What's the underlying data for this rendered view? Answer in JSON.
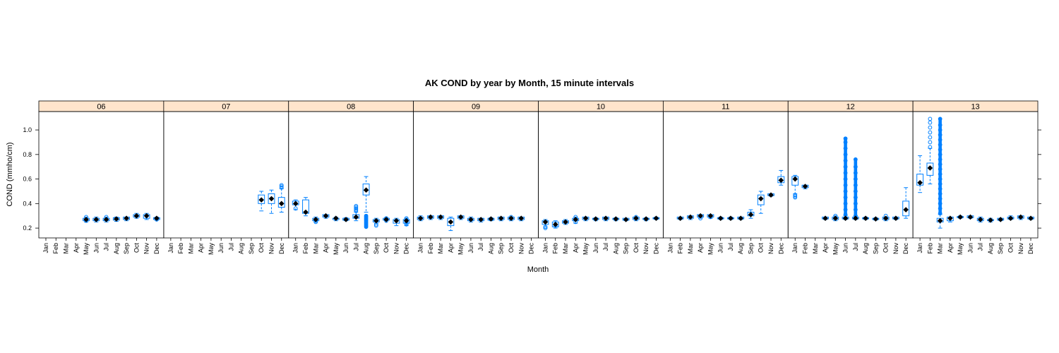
{
  "chart_data": {
    "type": "box",
    "title": "AK COND by year by Month, 15 minute intervals",
    "xlabel": "Month",
    "ylabel": "COND (mmho/cm)",
    "ylim": [
      0.12,
      1.15
    ],
    "yticks": [
      0.2,
      0.4,
      0.6,
      0.8,
      1.0
    ],
    "ytick_labels": [
      "0.2",
      "0.4",
      "0.6",
      "0.8",
      "1.0"
    ],
    "months": [
      "Jan",
      "Feb",
      "Mar",
      "Apr",
      "May",
      "Jun",
      "Jul",
      "Aug",
      "Sep",
      "Oct",
      "Nov",
      "Dec"
    ],
    "colors": {
      "strip": "#ffe5cc",
      "box": "#0080ff",
      "median": "#000000",
      "frame": "#000000"
    },
    "panels": [
      {
        "year": "06",
        "boxes": [
          {
            "m": 5,
            "med": 0.27,
            "q1": 0.26,
            "q3": 0.28,
            "lo": 0.25,
            "hi": 0.29,
            "out": [
              0.26,
              0.29
            ]
          },
          {
            "m": 6,
            "med": 0.27,
            "q1": 0.26,
            "q3": 0.28,
            "lo": 0.25,
            "hi": 0.29,
            "out": []
          },
          {
            "m": 7,
            "med": 0.27,
            "q1": 0.26,
            "q3": 0.28,
            "lo": 0.25,
            "hi": 0.29,
            "out": [
              0.29
            ]
          },
          {
            "m": 8,
            "med": 0.275,
            "q1": 0.265,
            "q3": 0.285,
            "lo": 0.255,
            "hi": 0.29,
            "out": []
          },
          {
            "m": 9,
            "med": 0.28,
            "q1": 0.27,
            "q3": 0.29,
            "lo": 0.26,
            "hi": 0.29,
            "out": []
          },
          {
            "m": 10,
            "med": 0.3,
            "q1": 0.29,
            "q3": 0.31,
            "lo": 0.28,
            "hi": 0.32,
            "out": []
          },
          {
            "m": 11,
            "med": 0.3,
            "q1": 0.28,
            "q3": 0.31,
            "lo": 0.27,
            "hi": 0.32,
            "out": []
          },
          {
            "m": 12,
            "med": 0.28,
            "q1": 0.27,
            "q3": 0.285,
            "lo": 0.265,
            "hi": 0.29,
            "out": [
              0.27
            ]
          }
        ]
      },
      {
        "year": "07",
        "boxes": [
          {
            "m": 10,
            "med": 0.43,
            "q1": 0.4,
            "q3": 0.47,
            "lo": 0.34,
            "hi": 0.5,
            "out": []
          },
          {
            "m": 11,
            "med": 0.44,
            "q1": 0.4,
            "q3": 0.48,
            "lo": 0.32,
            "hi": 0.51,
            "out": []
          },
          {
            "m": 12,
            "med": 0.4,
            "q1": 0.37,
            "q3": 0.45,
            "lo": 0.33,
            "hi": 0.52,
            "out": [
              0.53,
              0.54,
              0.55
            ]
          }
        ]
      },
      {
        "year": "08",
        "boxes": [
          {
            "m": 1,
            "med": 0.4,
            "q1": 0.39,
            "q3": 0.42,
            "lo": 0.35,
            "hi": 0.43,
            "out": [
              0.36
            ]
          },
          {
            "m": 2,
            "med": 0.33,
            "q1": 0.32,
            "q3": 0.43,
            "lo": 0.3,
            "hi": 0.45,
            "out": []
          },
          {
            "m": 3,
            "med": 0.27,
            "q1": 0.26,
            "q3": 0.28,
            "lo": 0.25,
            "hi": 0.29,
            "out": [
              0.25,
              0.26
            ]
          },
          {
            "m": 4,
            "med": 0.3,
            "q1": 0.29,
            "q3": 0.31,
            "lo": 0.28,
            "hi": 0.31,
            "out": []
          },
          {
            "m": 5,
            "med": 0.28,
            "q1": 0.27,
            "q3": 0.28,
            "lo": 0.26,
            "hi": 0.29,
            "out": []
          },
          {
            "m": 6,
            "med": 0.27,
            "q1": 0.265,
            "q3": 0.28,
            "lo": 0.26,
            "hi": 0.285,
            "out": []
          },
          {
            "m": 7,
            "med": 0.29,
            "q1": 0.28,
            "q3": 0.31,
            "lo": 0.26,
            "hi": 0.33,
            "out": [
              0.34,
              0.35,
              0.36,
              0.37,
              0.38
            ]
          },
          {
            "m": 8,
            "med": 0.51,
            "q1": 0.47,
            "q3": 0.56,
            "lo": 0.33,
            "hi": 0.62,
            "out": [
              0.21,
              0.22,
              0.23,
              0.24,
              0.25,
              0.26,
              0.27,
              0.28,
              0.29,
              0.3
            ]
          },
          {
            "m": 9,
            "med": 0.26,
            "q1": 0.25,
            "q3": 0.27,
            "lo": 0.24,
            "hi": 0.28,
            "out": [
              0.22,
              0.23
            ]
          },
          {
            "m": 10,
            "med": 0.27,
            "q1": 0.265,
            "q3": 0.28,
            "lo": 0.26,
            "hi": 0.285,
            "out": [
              0.26,
              0.28
            ]
          },
          {
            "m": 11,
            "med": 0.26,
            "q1": 0.24,
            "q3": 0.27,
            "lo": 0.22,
            "hi": 0.28,
            "out": []
          },
          {
            "m": 12,
            "med": 0.26,
            "q1": 0.24,
            "q3": 0.27,
            "lo": 0.22,
            "hi": 0.28,
            "out": [
              0.23,
              0.24,
              0.25,
              0.26,
              0.27,
              0.28
            ]
          }
        ]
      },
      {
        "year": "09",
        "boxes": [
          {
            "m": 1,
            "med": 0.28,
            "q1": 0.27,
            "q3": 0.29,
            "lo": 0.26,
            "hi": 0.3,
            "out": []
          },
          {
            "m": 2,
            "med": 0.29,
            "q1": 0.28,
            "q3": 0.3,
            "lo": 0.27,
            "hi": 0.3,
            "out": []
          },
          {
            "m": 3,
            "med": 0.29,
            "q1": 0.28,
            "q3": 0.3,
            "lo": 0.27,
            "hi": 0.3,
            "out": []
          },
          {
            "m": 4,
            "med": 0.25,
            "q1": 0.22,
            "q3": 0.28,
            "lo": 0.18,
            "hi": 0.29,
            "out": []
          },
          {
            "m": 5,
            "med": 0.29,
            "q1": 0.28,
            "q3": 0.3,
            "lo": 0.27,
            "hi": 0.3,
            "out": []
          },
          {
            "m": 6,
            "med": 0.27,
            "q1": 0.26,
            "q3": 0.28,
            "lo": 0.25,
            "hi": 0.29,
            "out": []
          },
          {
            "m": 7,
            "med": 0.27,
            "q1": 0.26,
            "q3": 0.28,
            "lo": 0.25,
            "hi": 0.28,
            "out": []
          },
          {
            "m": 8,
            "med": 0.275,
            "q1": 0.265,
            "q3": 0.28,
            "lo": 0.26,
            "hi": 0.285,
            "out": []
          },
          {
            "m": 9,
            "med": 0.28,
            "q1": 0.27,
            "q3": 0.29,
            "lo": 0.26,
            "hi": 0.29,
            "out": []
          },
          {
            "m": 10,
            "med": 0.28,
            "q1": 0.27,
            "q3": 0.29,
            "lo": 0.26,
            "hi": 0.29,
            "out": [
              0.29
            ]
          },
          {
            "m": 11,
            "med": 0.28,
            "q1": 0.27,
            "q3": 0.29,
            "lo": 0.26,
            "hi": 0.29,
            "out": []
          }
        ]
      },
      {
        "year": "10",
        "boxes": [
          {
            "m": 1,
            "med": 0.25,
            "q1": 0.23,
            "q3": 0.26,
            "lo": 0.2,
            "hi": 0.27,
            "out": [
              0.2,
              0.21
            ]
          },
          {
            "m": 2,
            "med": 0.23,
            "q1": 0.21,
            "q3": 0.25,
            "lo": 0.2,
            "hi": 0.26,
            "out": [
              0.22
            ]
          },
          {
            "m": 3,
            "med": 0.25,
            "q1": 0.24,
            "q3": 0.26,
            "lo": 0.23,
            "hi": 0.27,
            "out": []
          },
          {
            "m": 4,
            "med": 0.27,
            "q1": 0.26,
            "q3": 0.28,
            "lo": 0.24,
            "hi": 0.29,
            "out": [
              0.25,
              0.29
            ]
          },
          {
            "m": 5,
            "med": 0.28,
            "q1": 0.27,
            "q3": 0.29,
            "lo": 0.26,
            "hi": 0.29,
            "out": []
          },
          {
            "m": 6,
            "med": 0.275,
            "q1": 0.27,
            "q3": 0.28,
            "lo": 0.26,
            "hi": 0.285,
            "out": []
          },
          {
            "m": 7,
            "med": 0.28,
            "q1": 0.27,
            "q3": 0.29,
            "lo": 0.26,
            "hi": 0.29,
            "out": []
          },
          {
            "m": 8,
            "med": 0.275,
            "q1": 0.27,
            "q3": 0.28,
            "lo": 0.26,
            "hi": 0.285,
            "out": []
          },
          {
            "m": 9,
            "med": 0.27,
            "q1": 0.265,
            "q3": 0.28,
            "lo": 0.26,
            "hi": 0.28,
            "out": []
          },
          {
            "m": 10,
            "med": 0.28,
            "q1": 0.27,
            "q3": 0.29,
            "lo": 0.26,
            "hi": 0.29,
            "out": [
              0.29
            ]
          },
          {
            "m": 11,
            "med": 0.275,
            "q1": 0.27,
            "q3": 0.28,
            "lo": 0.26,
            "hi": 0.285,
            "out": []
          },
          {
            "m": 12,
            "med": 0.28,
            "q1": 0.275,
            "q3": 0.285,
            "lo": 0.27,
            "hi": 0.29,
            "out": []
          }
        ]
      },
      {
        "year": "11",
        "boxes": [
          {
            "m": 2,
            "med": 0.28,
            "q1": 0.275,
            "q3": 0.29,
            "lo": 0.27,
            "hi": 0.29,
            "out": []
          },
          {
            "m": 3,
            "med": 0.29,
            "q1": 0.28,
            "q3": 0.3,
            "lo": 0.27,
            "hi": 0.3,
            "out": []
          },
          {
            "m": 4,
            "med": 0.3,
            "q1": 0.29,
            "q3": 0.31,
            "lo": 0.28,
            "hi": 0.31,
            "out": [
              0.28
            ]
          },
          {
            "m": 5,
            "med": 0.3,
            "q1": 0.29,
            "q3": 0.31,
            "lo": 0.28,
            "hi": 0.31,
            "out": [
              0.29
            ]
          },
          {
            "m": 6,
            "med": 0.28,
            "q1": 0.275,
            "q3": 0.285,
            "lo": 0.27,
            "hi": 0.29,
            "out": []
          },
          {
            "m": 7,
            "med": 0.28,
            "q1": 0.275,
            "q3": 0.285,
            "lo": 0.27,
            "hi": 0.29,
            "out": []
          },
          {
            "m": 8,
            "med": 0.28,
            "q1": 0.275,
            "q3": 0.29,
            "lo": 0.27,
            "hi": 0.29,
            "out": []
          },
          {
            "m": 9,
            "med": 0.31,
            "q1": 0.3,
            "q3": 0.33,
            "lo": 0.28,
            "hi": 0.35,
            "out": []
          },
          {
            "m": 10,
            "med": 0.44,
            "q1": 0.39,
            "q3": 0.47,
            "lo": 0.32,
            "hi": 0.5,
            "out": []
          },
          {
            "m": 11,
            "med": 0.47,
            "q1": 0.465,
            "q3": 0.48,
            "lo": 0.46,
            "hi": 0.48,
            "out": []
          },
          {
            "m": 12,
            "med": 0.59,
            "q1": 0.57,
            "q3": 0.62,
            "lo": 0.55,
            "hi": 0.67,
            "out": []
          }
        ]
      },
      {
        "year": "12",
        "boxes": [
          {
            "m": 1,
            "med": 0.6,
            "q1": 0.55,
            "q3": 0.62,
            "lo": 0.48,
            "hi": 0.63,
            "out": [
              0.45,
              0.46,
              0.47
            ]
          },
          {
            "m": 2,
            "med": 0.54,
            "q1": 0.53,
            "q3": 0.55,
            "lo": 0.52,
            "hi": 0.55,
            "out": []
          },
          {
            "m": 4,
            "med": 0.28,
            "q1": 0.275,
            "q3": 0.29,
            "lo": 0.27,
            "hi": 0.29,
            "out": []
          },
          {
            "m": 5,
            "med": 0.28,
            "q1": 0.27,
            "q3": 0.29,
            "lo": 0.26,
            "hi": 0.3,
            "out": [
              0.3
            ]
          },
          {
            "m": 6,
            "med": 0.28,
            "q1": 0.275,
            "q3": 0.29,
            "lo": 0.27,
            "hi": 0.3,
            "out": [
              0.31,
              0.35,
              0.4,
              0.45,
              0.5,
              0.55,
              0.6,
              0.65,
              0.7,
              0.75,
              0.8,
              0.85,
              0.9,
              0.93
            ]
          },
          {
            "m": 7,
            "med": 0.28,
            "q1": 0.275,
            "q3": 0.29,
            "lo": 0.27,
            "hi": 0.3,
            "out": [
              0.3,
              0.35,
              0.4,
              0.45,
              0.5,
              0.55,
              0.6,
              0.65,
              0.7,
              0.76
            ]
          },
          {
            "m": 8,
            "med": 0.28,
            "q1": 0.275,
            "q3": 0.285,
            "lo": 0.27,
            "hi": 0.29,
            "out": []
          },
          {
            "m": 9,
            "med": 0.275,
            "q1": 0.27,
            "q3": 0.28,
            "lo": 0.265,
            "hi": 0.285,
            "out": []
          },
          {
            "m": 10,
            "med": 0.28,
            "q1": 0.27,
            "q3": 0.29,
            "lo": 0.26,
            "hi": 0.29,
            "out": [
              0.3
            ]
          },
          {
            "m": 11,
            "med": 0.28,
            "q1": 0.275,
            "q3": 0.29,
            "lo": 0.27,
            "hi": 0.29,
            "out": []
          },
          {
            "m": 12,
            "med": 0.35,
            "q1": 0.3,
            "q3": 0.42,
            "lo": 0.28,
            "hi": 0.53,
            "out": []
          }
        ]
      },
      {
        "year": "13",
        "boxes": [
          {
            "m": 1,
            "med": 0.57,
            "q1": 0.55,
            "q3": 0.64,
            "lo": 0.49,
            "hi": 0.79,
            "out": []
          },
          {
            "m": 2,
            "med": 0.69,
            "q1": 0.63,
            "q3": 0.73,
            "lo": 0.56,
            "hi": 0.85,
            "out": [
              0.86,
              0.9,
              0.94,
              0.98,
              1.02,
              1.06,
              1.09
            ]
          },
          {
            "m": 3,
            "med": 0.26,
            "q1": 0.25,
            "q3": 0.28,
            "lo": 0.2,
            "hi": 0.31,
            "out": [
              0.32,
              0.36,
              0.4,
              0.44,
              0.48,
              0.52,
              0.56,
              0.6,
              0.64,
              0.68,
              0.72,
              0.76,
              0.8,
              0.84,
              0.88,
              0.92,
              0.96,
              1.0,
              1.04,
              1.09
            ]
          },
          {
            "m": 4,
            "med": 0.28,
            "q1": 0.26,
            "q3": 0.29,
            "lo": 0.25,
            "hi": 0.29,
            "out": []
          },
          {
            "m": 5,
            "med": 0.29,
            "q1": 0.285,
            "q3": 0.295,
            "lo": 0.28,
            "hi": 0.3,
            "out": []
          },
          {
            "m": 6,
            "med": 0.29,
            "q1": 0.285,
            "q3": 0.3,
            "lo": 0.28,
            "hi": 0.3,
            "out": []
          },
          {
            "m": 7,
            "med": 0.27,
            "q1": 0.26,
            "q3": 0.28,
            "lo": 0.25,
            "hi": 0.29,
            "out": []
          },
          {
            "m": 8,
            "med": 0.265,
            "q1": 0.26,
            "q3": 0.27,
            "lo": 0.25,
            "hi": 0.28,
            "out": []
          },
          {
            "m": 9,
            "med": 0.27,
            "q1": 0.265,
            "q3": 0.28,
            "lo": 0.26,
            "hi": 0.28,
            "out": []
          },
          {
            "m": 10,
            "med": 0.28,
            "q1": 0.275,
            "q3": 0.29,
            "lo": 0.27,
            "hi": 0.3,
            "out": []
          },
          {
            "m": 11,
            "med": 0.29,
            "q1": 0.28,
            "q3": 0.3,
            "lo": 0.27,
            "hi": 0.3,
            "out": []
          },
          {
            "m": 12,
            "med": 0.28,
            "q1": 0.275,
            "q3": 0.29,
            "lo": 0.27,
            "hi": 0.29,
            "out": []
          }
        ]
      }
    ]
  }
}
